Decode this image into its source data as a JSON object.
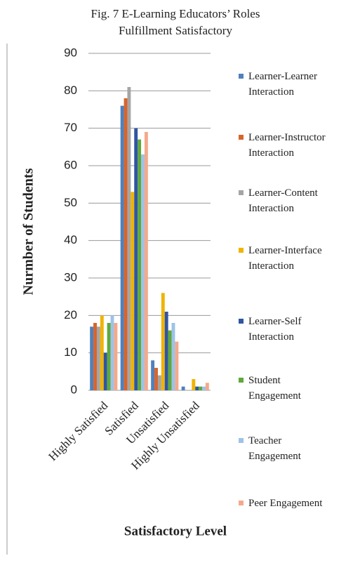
{
  "chart_data": {
    "type": "bar",
    "title": "Fig. 7 E-Learning Educators’ Roles",
    "subtitle": "Fulfillment Satisfactory",
    "xlabel": "Satisfactory Level",
    "ylabel": "Nurmber of Students",
    "categories": [
      "Highly Satisfied",
      "Satisfied",
      "Unsatisfied",
      "Highly Unsatisfied"
    ],
    "series": [
      {
        "name": "Learner-Learner Interaction",
        "color": "#4f81bd",
        "values": [
          17,
          76,
          8,
          1
        ]
      },
      {
        "name": "Learner-Instructor Interaction",
        "color": "#d8642c",
        "values": [
          18,
          78,
          6,
          0
        ]
      },
      {
        "name": "Learner-Content Interaction",
        "color": "#a5a5a5",
        "values": [
          17,
          81,
          4,
          0
        ]
      },
      {
        "name": "Learner-Interface Interaction",
        "color": "#f0b400",
        "values": [
          20,
          53,
          26,
          3
        ]
      },
      {
        "name": "Learner-Self Interaction",
        "color": "#2f55a4",
        "values": [
          10,
          70,
          21,
          1
        ]
      },
      {
        "name": "Student Engagement",
        "color": "#5fa83c",
        "values": [
          18,
          67,
          16,
          1
        ]
      },
      {
        "name": "Teacher Engagement",
        "color": "#9dc3e6",
        "values": [
          20,
          63,
          18,
          1
        ]
      },
      {
        "name": "Peer Engagement",
        "color": "#f4a98a",
        "values": [
          18,
          69,
          13,
          2
        ]
      }
    ],
    "ylim": [
      0,
      90
    ],
    "yticks": [
      0,
      10,
      20,
      30,
      40,
      50,
      60,
      70,
      80,
      90
    ],
    "grid": true,
    "legend": "right"
  }
}
